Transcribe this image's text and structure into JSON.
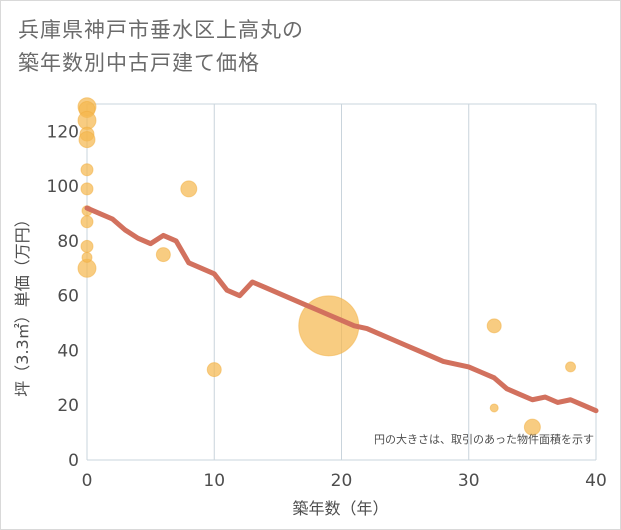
{
  "title_lines": [
    "兵庫県神戸市垂水区上高丸の",
    "築年数別中古戸建て価格"
  ],
  "colors": {
    "line": "#d2715e",
    "bubble": "#f5b950",
    "bubble_stroke": "#f2ad3d",
    "grid": "#c9d4dc",
    "plot_bg": "#ffffff"
  },
  "chart_data": {
    "type": "scatter",
    "xlabel": "築年数（年）",
    "ylabel": "坪（3.3㎡）単価（万円）",
    "xlim": [
      0,
      40
    ],
    "ylim": [
      0,
      130
    ],
    "xticks": [
      0,
      10,
      20,
      30,
      40
    ],
    "yticks": [
      0,
      20,
      40,
      60,
      80,
      100,
      120
    ],
    "grid": "vertical",
    "note": "円の大きさは、取引のあった物件面積を示す",
    "trend_line": {
      "x": [
        0,
        1,
        2,
        3,
        4,
        5,
        6,
        7,
        8,
        9,
        10,
        11,
        12,
        13,
        14,
        15,
        16,
        17,
        18,
        19,
        20,
        21,
        22,
        23,
        24,
        25,
        26,
        27,
        28,
        29,
        30,
        31,
        32,
        33,
        34,
        35,
        36,
        37,
        38,
        39,
        40
      ],
      "y": [
        92,
        90,
        88,
        84,
        81,
        79,
        82,
        80,
        72,
        70,
        68,
        62,
        60,
        65,
        63,
        61,
        59,
        57,
        55,
        53,
        51,
        49,
        48,
        46,
        44,
        42,
        40,
        38,
        36,
        35,
        34,
        32,
        30,
        26,
        24,
        22,
        23,
        21,
        22,
        20,
        18
      ]
    },
    "bubbles": [
      {
        "x": 0,
        "y": 129,
        "size": 9
      },
      {
        "x": 0,
        "y": 128,
        "size": 8
      },
      {
        "x": 0,
        "y": 124,
        "size": 9
      },
      {
        "x": 0,
        "y": 119,
        "size": 7
      },
      {
        "x": 0,
        "y": 117,
        "size": 8
      },
      {
        "x": 0,
        "y": 106,
        "size": 6
      },
      {
        "x": 0,
        "y": 99,
        "size": 6
      },
      {
        "x": 0,
        "y": 91,
        "size": 5
      },
      {
        "x": 0,
        "y": 87,
        "size": 6
      },
      {
        "x": 0,
        "y": 78,
        "size": 6
      },
      {
        "x": 0,
        "y": 70,
        "size": 9
      },
      {
        "x": 0,
        "y": 74,
        "size": 5
      },
      {
        "x": 6,
        "y": 75,
        "size": 7
      },
      {
        "x": 8,
        "y": 99,
        "size": 8
      },
      {
        "x": 10,
        "y": 33,
        "size": 7
      },
      {
        "x": 19,
        "y": 49,
        "size": 30
      },
      {
        "x": 32,
        "y": 49,
        "size": 7
      },
      {
        "x": 32,
        "y": 19,
        "size": 4
      },
      {
        "x": 35,
        "y": 12,
        "size": 8
      },
      {
        "x": 38,
        "y": 34,
        "size": 5
      }
    ]
  }
}
